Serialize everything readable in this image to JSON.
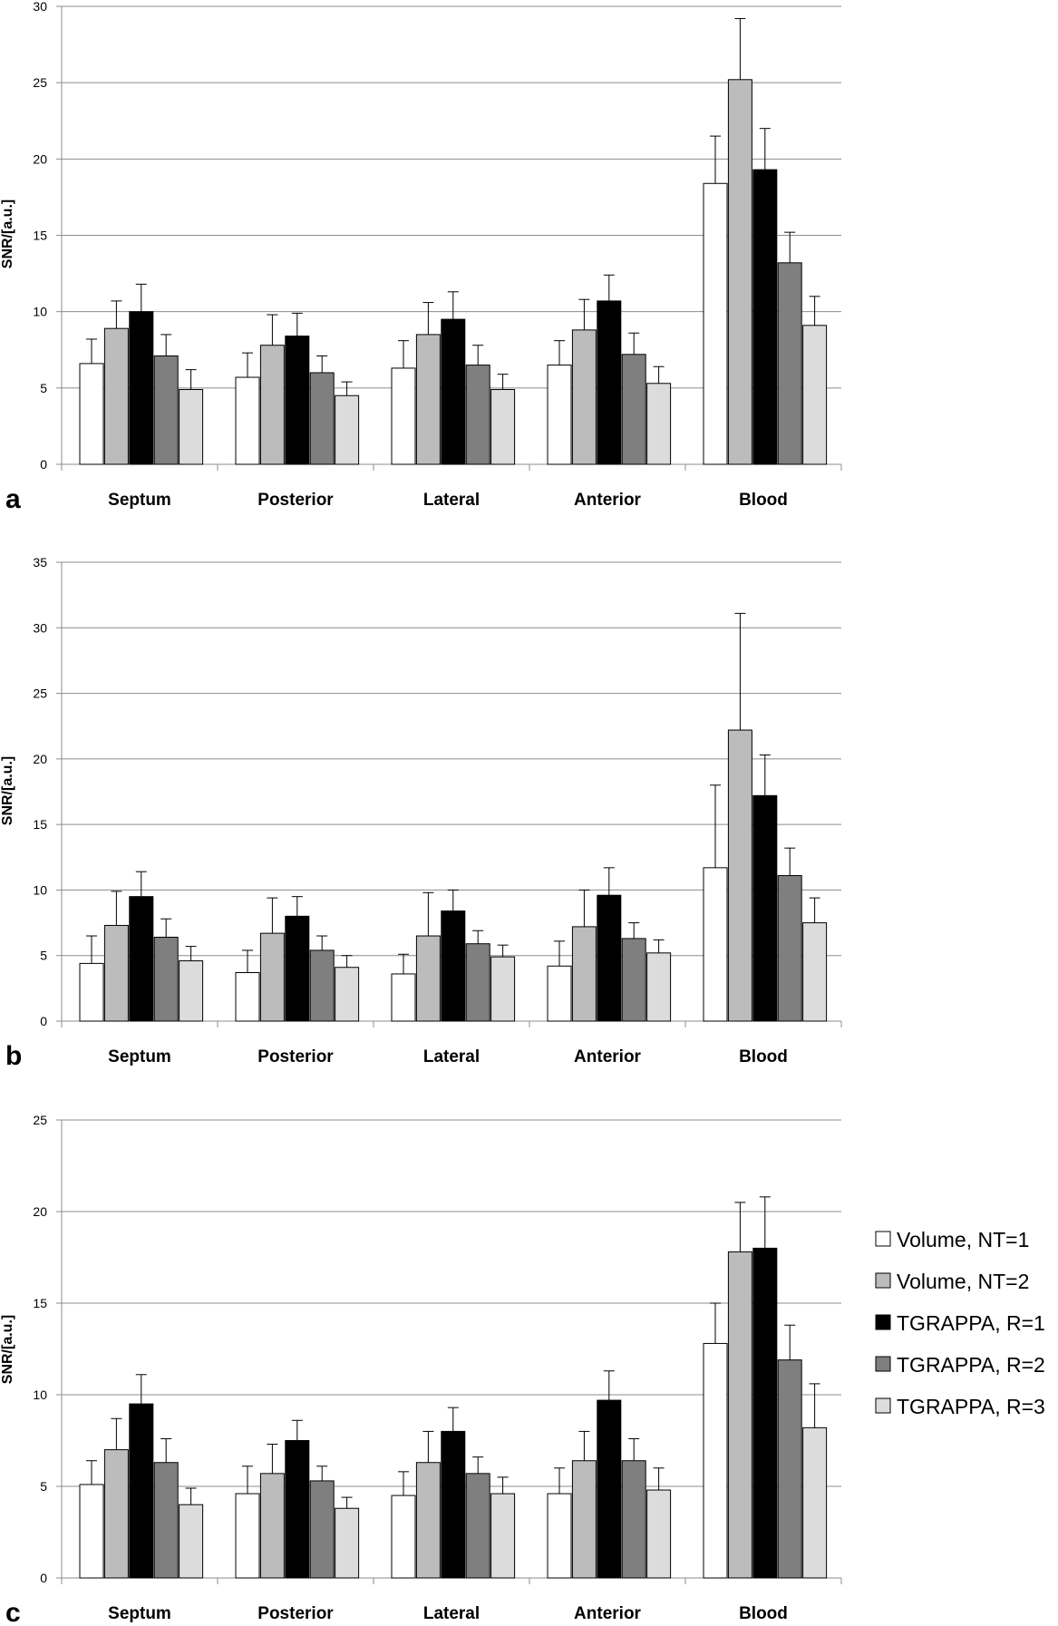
{
  "legend": [
    {
      "label": "Volume, NT=1",
      "color": "#ffffff"
    },
    {
      "label": "Volume, NT=2",
      "color": "#bcbcbc"
    },
    {
      "label": "TGRAPPA, R=1",
      "color": "#000000"
    },
    {
      "label": "TGRAPPA, R=2",
      "color": "#7f7f7f"
    },
    {
      "label": "TGRAPPA, R=3",
      "color": "#dcdcdc"
    }
  ],
  "chart_data": [
    {
      "type": "bar",
      "panel_label": "a",
      "ylabel": "SNR/[a.u.]",
      "ylim": [
        0,
        30
      ],
      "yticks": [
        0,
        5,
        10,
        15,
        20,
        25,
        30
      ],
      "grid": true,
      "categories": [
        "Septum",
        "Posterior",
        "Lateral",
        "Anterior",
        "Blood"
      ],
      "series": [
        {
          "name": "Volume, NT=1",
          "values": [
            6.6,
            5.7,
            6.3,
            6.5,
            18.4
          ],
          "errors": [
            1.6,
            1.6,
            1.8,
            1.6,
            3.1
          ]
        },
        {
          "name": "Volume, NT=2",
          "values": [
            8.9,
            7.8,
            8.5,
            8.8,
            25.2
          ],
          "errors": [
            1.8,
            2.0,
            2.1,
            2.0,
            4.0
          ]
        },
        {
          "name": "TGRAPPA, R=1",
          "values": [
            10.0,
            8.4,
            9.5,
            10.7,
            19.3
          ],
          "errors": [
            1.8,
            1.5,
            1.8,
            1.7,
            2.7
          ]
        },
        {
          "name": "TGRAPPA, R=2",
          "values": [
            7.1,
            6.0,
            6.5,
            7.2,
            13.2
          ],
          "errors": [
            1.4,
            1.1,
            1.3,
            1.4,
            2.0
          ]
        },
        {
          "name": "TGRAPPA, R=3",
          "values": [
            4.9,
            4.5,
            4.9,
            5.3,
            9.1
          ],
          "errors": [
            1.3,
            0.9,
            1.0,
            1.1,
            1.9
          ]
        }
      ]
    },
    {
      "type": "bar",
      "panel_label": "b",
      "ylabel": "SNR/[a.u.]",
      "ylim": [
        0,
        35
      ],
      "yticks": [
        0,
        5,
        10,
        15,
        20,
        25,
        30,
        35
      ],
      "grid": true,
      "categories": [
        "Septum",
        "Posterior",
        "Lateral",
        "Anterior",
        "Blood"
      ],
      "series": [
        {
          "name": "Volume, NT=1",
          "values": [
            4.4,
            3.7,
            3.6,
            4.2,
            11.7
          ],
          "errors": [
            2.1,
            1.7,
            1.5,
            1.9,
            6.3
          ]
        },
        {
          "name": "Volume, NT=2",
          "values": [
            7.3,
            6.7,
            6.5,
            7.2,
            22.2
          ],
          "errors": [
            2.6,
            2.7,
            3.3,
            2.8,
            8.9
          ]
        },
        {
          "name": "TGRAPPA, R=1",
          "values": [
            9.5,
            8.0,
            8.4,
            9.6,
            17.2
          ],
          "errors": [
            1.9,
            1.5,
            1.6,
            2.1,
            3.1
          ]
        },
        {
          "name": "TGRAPPA, R=2",
          "values": [
            6.4,
            5.4,
            5.9,
            6.3,
            11.1
          ],
          "errors": [
            1.4,
            1.1,
            1.0,
            1.2,
            2.1
          ]
        },
        {
          "name": "TGRAPPA, R=3",
          "values": [
            4.6,
            4.1,
            4.9,
            5.2,
            7.5
          ],
          "errors": [
            1.1,
            0.9,
            0.9,
            1.0,
            1.9
          ]
        }
      ]
    },
    {
      "type": "bar",
      "panel_label": "c",
      "ylabel": "SNR/[a.u.]",
      "ylim": [
        0,
        25
      ],
      "yticks": [
        0,
        5,
        10,
        15,
        20,
        25
      ],
      "grid": true,
      "legend_position": "right",
      "categories": [
        "Septum",
        "Posterior",
        "Lateral",
        "Anterior",
        "Blood"
      ],
      "series": [
        {
          "name": "Volume, NT=1",
          "values": [
            5.1,
            4.6,
            4.5,
            4.6,
            12.8
          ],
          "errors": [
            1.3,
            1.5,
            1.3,
            1.4,
            2.2
          ]
        },
        {
          "name": "Volume, NT=2",
          "values": [
            7.0,
            5.7,
            6.3,
            6.4,
            17.8
          ],
          "errors": [
            1.7,
            1.6,
            1.7,
            1.6,
            2.7
          ]
        },
        {
          "name": "TGRAPPA, R=1",
          "values": [
            9.5,
            7.5,
            8.0,
            9.7,
            18.0
          ],
          "errors": [
            1.6,
            1.1,
            1.3,
            1.6,
            2.8
          ]
        },
        {
          "name": "TGRAPPA, R=2",
          "values": [
            6.3,
            5.3,
            5.7,
            6.4,
            11.9
          ],
          "errors": [
            1.3,
            0.8,
            0.9,
            1.2,
            1.9
          ]
        },
        {
          "name": "TGRAPPA, R=3",
          "values": [
            4.0,
            3.8,
            4.6,
            4.8,
            8.2
          ],
          "errors": [
            0.9,
            0.6,
            0.9,
            1.2,
            2.4
          ]
        }
      ]
    }
  ]
}
